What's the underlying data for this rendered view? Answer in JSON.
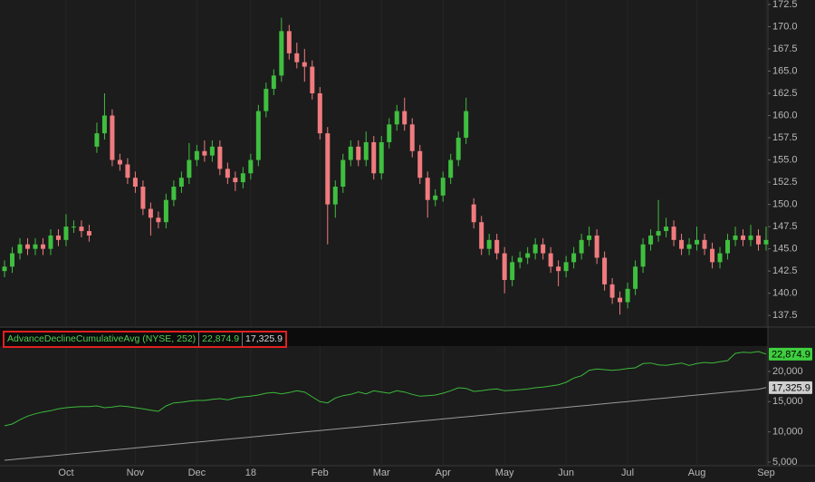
{
  "chart_data": [
    {
      "type": "candlestick",
      "categories": [
        null,
        null,
        null,
        null,
        null,
        null,
        null,
        null,
        "Oct",
        null,
        null,
        null,
        null,
        null,
        null,
        null,
        null,
        "Nov",
        null,
        null,
        null,
        null,
        null,
        null,
        null,
        "Dec",
        null,
        null,
        null,
        null,
        null,
        null,
        "18",
        null,
        null,
        null,
        null,
        null,
        null,
        null,
        null,
        "Feb",
        null,
        null,
        null,
        null,
        null,
        null,
        null,
        "Mar",
        null,
        null,
        null,
        null,
        null,
        null,
        null,
        "Apr",
        null,
        null,
        null,
        null,
        null,
        null,
        null,
        "May",
        null,
        null,
        null,
        null,
        null,
        null,
        null,
        "Jun",
        null,
        null,
        null,
        null,
        null,
        null,
        null,
        "Jul",
        null,
        null,
        null,
        null,
        null,
        null,
        null,
        null,
        "Aug",
        null,
        null,
        null,
        null,
        null,
        null,
        null,
        null,
        "Sep"
      ],
      "open": [
        142.5,
        143,
        144.5,
        145.5,
        145,
        145.5,
        145,
        146.5,
        146,
        147.5,
        147.5,
        147,
        156.5,
        158,
        160,
        155,
        154.5,
        153,
        152,
        149.5,
        148.5,
        148,
        150.5,
        152,
        153,
        155,
        156,
        155.5,
        156.5,
        154,
        153,
        152.5,
        153.5,
        155,
        160.5,
        163,
        164.5,
        169.5,
        167,
        166,
        165.5,
        162.5,
        158,
        150,
        152,
        155,
        156.5,
        155,
        157,
        153.5,
        157,
        159,
        160.5,
        159,
        156,
        153,
        150.5,
        151,
        153,
        155,
        157.5,
        150,
        148,
        145,
        146,
        144.5,
        141.5,
        143.5,
        144,
        144.5,
        145.5,
        144.5,
        143,
        142.5,
        143.5,
        144.5,
        146,
        146.5,
        144,
        141,
        139.5,
        139,
        140.5,
        143,
        145.5,
        146.5,
        147,
        147.5,
        146,
        145,
        145.5,
        146,
        145,
        143.5,
        144.5,
        146,
        146.5,
        146,
        146.5,
        145.5
      ],
      "high": [
        143.7,
        145.2,
        146.2,
        146.2,
        146.2,
        146.2,
        147.2,
        147.2,
        148.9,
        148.2,
        148.2,
        147.7,
        159.2,
        162.5,
        160.7,
        155.7,
        155.2,
        153.7,
        152.7,
        150.2,
        149.2,
        151.2,
        152.7,
        153.7,
        156.9,
        156.7,
        157.2,
        157.2,
        157.2,
        154.7,
        153.7,
        154.2,
        155.7,
        161.2,
        163.7,
        165.2,
        171,
        170.2,
        168.2,
        167.5,
        166.2,
        163.2,
        158.7,
        152.7,
        155.7,
        157.2,
        157.2,
        158.2,
        157.7,
        157.7,
        159.7,
        161.2,
        162,
        159.7,
        156.7,
        153.7,
        151.7,
        153.7,
        155.7,
        158.2,
        162,
        150.7,
        148.7,
        146.7,
        146.7,
        145.2,
        144.2,
        144.7,
        145.2,
        146.2,
        146.2,
        145.2,
        143.7,
        144.2,
        145.2,
        146.7,
        147.5,
        147.2,
        144.7,
        141.7,
        140.2,
        141.2,
        143.7,
        146.2,
        147.2,
        150.5,
        148.5,
        148.2,
        146.7,
        146.2,
        147.5,
        146.7,
        145.7,
        145.2,
        146.7,
        147.5,
        147.2,
        147.7,
        147.2,
        147.5
      ],
      "low": [
        141.8,
        142.3,
        143.8,
        144.3,
        144.3,
        144.3,
        144.3,
        145.3,
        145.3,
        146.8,
        146.3,
        145.8,
        155.8,
        157.3,
        154.3,
        153.8,
        152.3,
        151.3,
        148.8,
        146.5,
        147.3,
        147.3,
        149.8,
        151.3,
        152.3,
        154.3,
        154.8,
        154.8,
        153.3,
        152.3,
        151.5,
        151.8,
        152.8,
        154.3,
        159.8,
        162.3,
        163.8,
        166.3,
        165.3,
        163.8,
        161.8,
        157.3,
        145.5,
        148.5,
        151.3,
        154.3,
        154.3,
        154.3,
        152.8,
        152.8,
        156.3,
        158.3,
        158.3,
        155.3,
        152.3,
        148.5,
        149.8,
        150.3,
        152.3,
        154.3,
        156.8,
        147.3,
        144.3,
        144.3,
        143.8,
        140,
        140.8,
        142.8,
        143.3,
        143.8,
        143.8,
        142.3,
        140.8,
        141.8,
        142.8,
        143.8,
        145.3,
        143.3,
        140.3,
        138.8,
        137.6,
        138.3,
        139.8,
        142.3,
        144.8,
        145.8,
        146.3,
        145.3,
        144.3,
        144.3,
        144.8,
        144.3,
        142.8,
        142.8,
        143.8,
        145.3,
        145.3,
        145.3,
        144.8,
        144.8
      ],
      "close": [
        143,
        144.5,
        145.5,
        145,
        145.5,
        145,
        146.5,
        146,
        147.5,
        147.5,
        147,
        146.5,
        158,
        160,
        155,
        154.5,
        153,
        152,
        149.5,
        148.5,
        148,
        150.5,
        152,
        153,
        155,
        156,
        155.5,
        156.5,
        154,
        153,
        152.5,
        153.5,
        155,
        160.5,
        163,
        164.5,
        169.5,
        167,
        166,
        165.5,
        162.5,
        158,
        150,
        152,
        155,
        156.5,
        155,
        157,
        153.5,
        157,
        159,
        160.5,
        159,
        156,
        153,
        150.5,
        151,
        153,
        155,
        157.5,
        160.5,
        148,
        145,
        146,
        144.5,
        141.5,
        143.5,
        144,
        144.5,
        145.5,
        144.5,
        143,
        142.5,
        143.5,
        144.5,
        146,
        146.5,
        144,
        141,
        139.5,
        139,
        140.5,
        143,
        145.5,
        146.5,
        147,
        147.5,
        146,
        145,
        145.5,
        146,
        145,
        143.5,
        144.5,
        146,
        146.5,
        146,
        146.5,
        145.5,
        146
      ],
      "up_color": "#3fbf3f",
      "down_color": "#f07b7e",
      "ylim": [
        136.3,
        173
      ],
      "yticks": [
        137.5,
        {
          "value": 140,
          "label": "140.0"
        },
        142.5,
        {
          "value": 145,
          "label": "145.0"
        },
        147.5,
        {
          "value": 150,
          "label": "150.0"
        },
        152.5,
        {
          "value": 155,
          "label": "155.0"
        },
        157.5,
        {
          "value": 160,
          "label": "160.0"
        },
        162.5,
        {
          "value": 165,
          "label": "165.0"
        },
        167.5,
        {
          "value": 170,
          "label": "170.0"
        },
        172.5
      ],
      "grid": true
    },
    {
      "type": "line",
      "title": "AdvanceDeclineCumulativeAvg (NYSE, 252)",
      "series": [
        {
          "color": "#3cb83c",
          "badge_color": "#3fcf3f",
          "values": [
            11000,
            11300,
            12000,
            12600,
            13000,
            13300,
            13500,
            13800,
            14000,
            14100,
            14200,
            14200,
            14300,
            14000,
            14100,
            14300,
            14200,
            14000,
            13800,
            13600,
            13400,
            14300,
            14800,
            14900,
            15100,
            15200,
            15200,
            15400,
            15500,
            15300,
            15600,
            15800,
            15900,
            16100,
            16400,
            16500,
            16300,
            16500,
            16800,
            16600,
            15800,
            15000,
            14800,
            15600,
            16000,
            16200,
            16600,
            16300,
            16800,
            16600,
            16400,
            16800,
            16600,
            16200,
            15900,
            16000,
            16100,
            16400,
            16800,
            17300,
            17200,
            16700,
            16800,
            17000,
            17100,
            16800,
            16900,
            17000,
            17100,
            17300,
            17400,
            17600,
            17800,
            18200,
            18900,
            19300,
            20200,
            20400,
            20300,
            20200,
            20300,
            20500,
            20600,
            21300,
            21400,
            21100,
            21000,
            21200,
            21400,
            21000,
            21300,
            21500,
            21400,
            21600,
            21800,
            23000,
            23200,
            23100,
            23300,
            22874.9
          ],
          "value_labels": [
            null,
            null,
            null,
            null,
            null,
            null,
            null,
            null,
            null,
            null,
            null,
            null,
            null,
            null,
            null,
            null,
            null,
            null,
            null,
            null,
            null,
            null,
            null,
            null,
            null,
            null,
            null,
            null,
            null,
            null,
            null,
            null,
            null,
            null,
            null,
            null,
            null,
            null,
            null,
            null,
            null,
            null,
            null,
            null,
            null,
            null,
            null,
            null,
            null,
            null,
            null,
            null,
            null,
            null,
            null,
            null,
            null,
            null,
            null,
            null,
            null,
            null,
            null,
            null,
            null,
            null,
            null,
            null,
            null,
            null,
            null,
            null,
            null,
            null,
            null,
            null,
            null,
            null,
            null,
            null,
            null,
            null,
            null,
            null,
            null,
            null,
            null,
            null,
            null,
            null,
            null,
            null,
            null,
            null,
            null,
            null,
            null,
            null,
            null,
            "22,874.9"
          ]
        },
        {
          "color": "#9a9a9a",
          "badge_color": "#cfcfcf",
          "values": [
            5300,
            5420,
            5540,
            5660,
            5780,
            5900,
            6020,
            6140,
            6260,
            6380,
            6500,
            6620,
            6740,
            6860,
            6980,
            7100,
            7220,
            7340,
            7460,
            7580,
            7700,
            7820,
            7940,
            8060,
            8180,
            8300,
            8420,
            8540,
            8660,
            8780,
            8900,
            9020,
            9140,
            9260,
            9380,
            9500,
            9620,
            9740,
            9860,
            9980,
            10100,
            10220,
            10340,
            10460,
            10580,
            10700,
            10820,
            10940,
            11060,
            11180,
            11300,
            11420,
            11540,
            11660,
            11780,
            11900,
            12020,
            12140,
            12260,
            12380,
            12500,
            12620,
            12740,
            12860,
            12980,
            13100,
            13220,
            13340,
            13460,
            13580,
            13700,
            13820,
            13940,
            14060,
            14180,
            14300,
            14420,
            14540,
            14660,
            14780,
            14900,
            15020,
            15140,
            15260,
            15380,
            15500,
            15620,
            15740,
            15860,
            15980,
            16100,
            16220,
            16340,
            16460,
            16580,
            16700,
            16820,
            16940,
            17060,
            17325.9
          ],
          "value_labels": [
            null,
            null,
            null,
            null,
            null,
            null,
            null,
            null,
            null,
            null,
            null,
            null,
            null,
            null,
            null,
            null,
            null,
            null,
            null,
            null,
            null,
            null,
            null,
            null,
            null,
            null,
            null,
            null,
            null,
            null,
            null,
            null,
            null,
            null,
            null,
            null,
            null,
            null,
            null,
            null,
            null,
            null,
            null,
            null,
            null,
            null,
            null,
            null,
            null,
            null,
            null,
            null,
            null,
            null,
            null,
            null,
            null,
            null,
            null,
            null,
            null,
            null,
            null,
            null,
            null,
            null,
            null,
            null,
            null,
            null,
            null,
            null,
            null,
            null,
            null,
            null,
            null,
            null,
            null,
            null,
            null,
            null,
            null,
            null,
            null,
            null,
            null,
            null,
            null,
            null,
            null,
            null,
            null,
            null,
            null,
            null,
            null,
            null,
            null,
            "17,325.9"
          ]
        }
      ],
      "ylim": [
        4400,
        24200
      ],
      "yticks": [
        {
          "value": 5000,
          "label": "5,000"
        },
        {
          "value": 10000,
          "label": "10,000"
        },
        {
          "value": 15000,
          "label": "15,000"
        },
        {
          "value": 20000,
          "label": "20,000"
        }
      ]
    }
  ]
}
